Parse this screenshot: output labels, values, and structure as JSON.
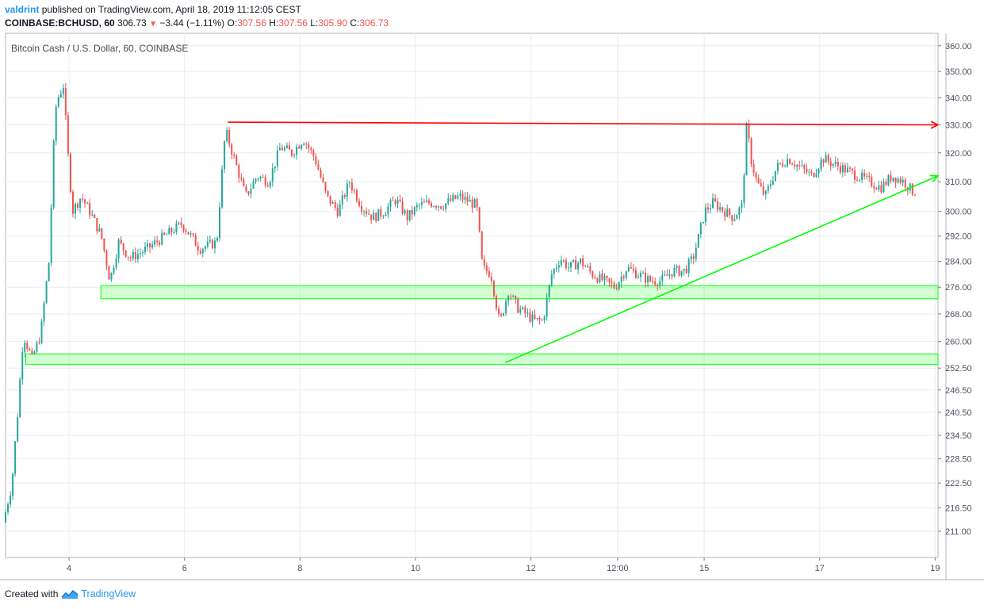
{
  "header": {
    "author": "valdrint",
    "published": "published on TradingView.com, April 18, 2019 11:12:05 CEST",
    "symbol": "COINBASE:BCHUSD, 60",
    "last": "306.73",
    "change": "−3.44 (−1.11%)",
    "o_label": "O:",
    "o_value": "307.56",
    "h_label": "H:",
    "h_value": "307.56",
    "l_label": "L:",
    "l_value": "305.90",
    "c_label": "C:",
    "c_value": "306.73"
  },
  "footer": {
    "created_with": "Created with",
    "brand": "TradingView"
  },
  "colors": {
    "up": "#26a69a",
    "down": "#ef5350",
    "resistance": "#ff0000",
    "support": "#00ff00",
    "grid": "#e6eef2"
  },
  "chart_data": {
    "type": "candlestick",
    "title": "Bitcoin Cash / U.S. Dollar, 60, COINBASE",
    "ylabel": "",
    "xlabel": "",
    "y_scale": "log",
    "ylim": [
      205,
      365
    ],
    "y_ticks": [
      "360.00",
      "350.00",
      "340.00",
      "330.00",
      "320.00",
      "310.00",
      "300.00",
      "292.00",
      "284.00",
      "276.00",
      "268.00",
      "260.00",
      "252.50",
      "246.50",
      "240.50",
      "234.50",
      "228.50",
      "222.50",
      "216.50",
      "211.00"
    ],
    "x_ticks": [
      {
        "label": "4",
        "t": 4.0
      },
      {
        "label": "6",
        "t": 6.0
      },
      {
        "label": "8",
        "t": 8.0
      },
      {
        "label": "10",
        "t": 10.0
      },
      {
        "label": "12",
        "t": 12.0
      },
      {
        "label": "12:00",
        "t": 13.5
      },
      {
        "label": "15",
        "t": 15.0
      },
      {
        "label": "17",
        "t": 17.0
      },
      {
        "label": "19",
        "t": 19.0
      }
    ],
    "xlim": [
      2.9,
      19.05
    ],
    "price_path": [
      [
        2.9,
        213
      ],
      [
        3.05,
        222
      ],
      [
        3.15,
        240
      ],
      [
        3.25,
        262
      ],
      [
        3.4,
        255
      ],
      [
        3.55,
        262
      ],
      [
        3.7,
        285
      ],
      [
        3.8,
        335
      ],
      [
        3.85,
        340
      ],
      [
        3.95,
        345
      ],
      [
        4.0,
        325
      ],
      [
        4.1,
        300
      ],
      [
        4.25,
        305
      ],
      [
        4.4,
        300
      ],
      [
        4.6,
        292
      ],
      [
        4.75,
        278
      ],
      [
        4.9,
        290
      ],
      [
        5.1,
        285
      ],
      [
        5.4,
        288
      ],
      [
        5.7,
        292
      ],
      [
        6.0,
        296
      ],
      [
        6.3,
        288
      ],
      [
        6.6,
        290
      ],
      [
        6.75,
        328
      ],
      [
        6.9,
        318
      ],
      [
        7.1,
        305
      ],
      [
        7.3,
        312
      ],
      [
        7.5,
        310
      ],
      [
        7.7,
        322
      ],
      [
        7.9,
        320
      ],
      [
        8.1,
        325
      ],
      [
        8.3,
        318
      ],
      [
        8.5,
        305
      ],
      [
        8.7,
        300
      ],
      [
        8.9,
        310
      ],
      [
        9.1,
        302
      ],
      [
        9.3,
        298
      ],
      [
        9.5,
        300
      ],
      [
        9.7,
        304
      ],
      [
        9.9,
        298
      ],
      [
        10.1,
        302
      ],
      [
        10.3,
        303
      ],
      [
        10.5,
        302
      ],
      [
        10.8,
        305
      ],
      [
        11.0,
        303
      ],
      [
        11.1,
        302
      ],
      [
        11.2,
        282
      ],
      [
        11.35,
        280
      ],
      [
        11.5,
        265
      ],
      [
        11.65,
        275
      ],
      [
        11.8,
        270
      ],
      [
        11.95,
        268
      ],
      [
        12.1,
        266
      ],
      [
        12.25,
        266
      ],
      [
        12.4,
        280
      ],
      [
        12.55,
        285
      ],
      [
        12.7,
        282
      ],
      [
        12.9,
        284
      ],
      [
        13.1,
        280
      ],
      [
        13.3,
        278
      ],
      [
        13.5,
        276
      ],
      [
        13.7,
        282
      ],
      [
        13.9,
        280
      ],
      [
        14.1,
        278
      ],
      [
        14.3,
        278
      ],
      [
        14.5,
        281
      ],
      [
        14.7,
        281
      ],
      [
        14.85,
        285
      ],
      [
        14.95,
        292
      ],
      [
        15.05,
        300
      ],
      [
        15.2,
        303
      ],
      [
        15.4,
        300
      ],
      [
        15.55,
        298
      ],
      [
        15.7,
        302
      ],
      [
        15.78,
        330
      ],
      [
        15.85,
        318
      ],
      [
        15.95,
        310
      ],
      [
        16.1,
        305
      ],
      [
        16.3,
        315
      ],
      [
        16.5,
        318
      ],
      [
        16.7,
        315
      ],
      [
        16.9,
        312
      ],
      [
        17.1,
        318
      ],
      [
        17.3,
        316
      ],
      [
        17.5,
        314
      ],
      [
        17.7,
        312
      ],
      [
        17.9,
        310
      ],
      [
        18.1,
        308
      ],
      [
        18.3,
        312
      ],
      [
        18.5,
        310
      ],
      [
        18.65,
        306.73
      ]
    ],
    "annotations": {
      "resistance_line": {
        "t1": 6.75,
        "p1": 331,
        "t2": 19.05,
        "p2": 330,
        "color": "#ff0000",
        "arrow": true
      },
      "support_zones": [
        {
          "t1": 4.55,
          "t2": 19.05,
          "p_low": 272.5,
          "p_high": 276.5
        },
        {
          "t1": 3.25,
          "t2": 19.05,
          "p_low": 253.5,
          "p_high": 256.5
        }
      ],
      "ascending_trendline": {
        "t1": 11.55,
        "p1": 254,
        "t2": 19.05,
        "p2": 312,
        "color": "#00ff00",
        "arrow": true
      }
    }
  }
}
